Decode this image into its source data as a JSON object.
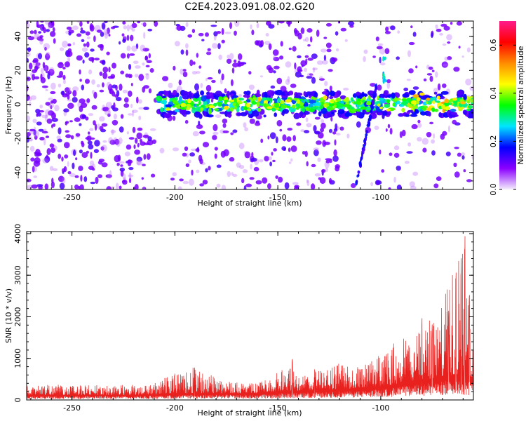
{
  "figure_title": "C2E4.2023.091.08.02.G20",
  "chart_data": [
    {
      "type": "heatmap",
      "title": "C2E4.2023.091.08.02.G20",
      "xlabel": "Height of straight line (km)",
      "ylabel": "Frequency (Hz)",
      "xlim": [
        -272,
        -55
      ],
      "ylim": [
        -50,
        49
      ],
      "x_ticks": [
        -250,
        -200,
        -150,
        -100
      ],
      "x_tick_labels": [
        "-250",
        "-200",
        "-150",
        "-100"
      ],
      "y_ticks": [
        -40,
        -20,
        0,
        20,
        40
      ],
      "y_tick_labels": [
        "-40",
        "-20",
        "0",
        "20",
        "40"
      ],
      "grid": false,
      "band_center_hz": 0,
      "band_start_km": -208,
      "colorbar": {
        "label": "Normalized spectral amplitude",
        "range": [
          0,
          0.7
        ],
        "ticks": [
          0.0,
          0.2,
          0.4,
          0.6
        ],
        "tick_labels": [
          "0.0",
          "0.2",
          "0.4",
          "0.6"
        ],
        "colors": [
          "#f4eefc",
          "#8b00ff",
          "#0000ff",
          "#00e5ff",
          "#00ff00",
          "#ffff00",
          "#ff8c00",
          "#ff0000",
          "#ff1a8c"
        ]
      }
    },
    {
      "type": "line",
      "xlabel": "Height of straight line (km)",
      "ylabel": "SNR (10 * v/v)",
      "xlim": [
        -272,
        -55
      ],
      "ylim": [
        0,
        4050
      ],
      "x_ticks": [
        -250,
        -200,
        -150,
        -100
      ],
      "x_tick_labels": [
        "-250",
        "-200",
        "-150",
        "-100"
      ],
      "y_ticks": [
        0,
        1000,
        2000,
        3000,
        4000
      ],
      "y_tick_labels": [
        "0",
        "1000",
        "2000",
        "3000",
        "4000"
      ],
      "series": [
        {
          "name": "SNR",
          "color": "#e8201e",
          "envelope_x": [
            -272,
            -250,
            -230,
            -210,
            -205,
            -190,
            -180,
            -170,
            -160,
            -150,
            -145,
            -140,
            -130,
            -120,
            -110,
            -100,
            -95,
            -90,
            -85,
            -80,
            -75,
            -70,
            -65,
            -62,
            -60,
            -58,
            -56
          ],
          "envelope_y": [
            380,
            360,
            350,
            400,
            550,
            800,
            550,
            450,
            400,
            700,
            950,
            600,
            700,
            900,
            800,
            1100,
            1300,
            1600,
            1400,
            1900,
            2000,
            2300,
            3400,
            3700,
            4000,
            2600,
            2000
          ],
          "baseline_y": [
            120,
            120,
            120,
            130,
            150,
            160,
            160,
            160,
            160,
            200,
            220,
            220,
            240,
            260,
            280,
            330,
            360,
            420,
            450,
            480,
            520,
            560,
            600,
            620,
            620,
            580,
            560
          ],
          "peak_events": [
            {
              "x": -190.5,
              "y": 850
            },
            {
              "x": -143,
              "y": 1000
            },
            {
              "x": -132,
              "y": 780
            },
            {
              "x": -80,
              "y": 2000
            },
            {
              "x": -75,
              "y": 1850
            },
            {
              "x": -67,
              "y": 2300
            },
            {
              "x": -63.5,
              "y": 3100
            },
            {
              "x": -61,
              "y": 3500
            },
            {
              "x": -59.2,
              "y": 4000
            },
            {
              "x": -57,
              "y": 2600
            }
          ]
        }
      ]
    }
  ]
}
